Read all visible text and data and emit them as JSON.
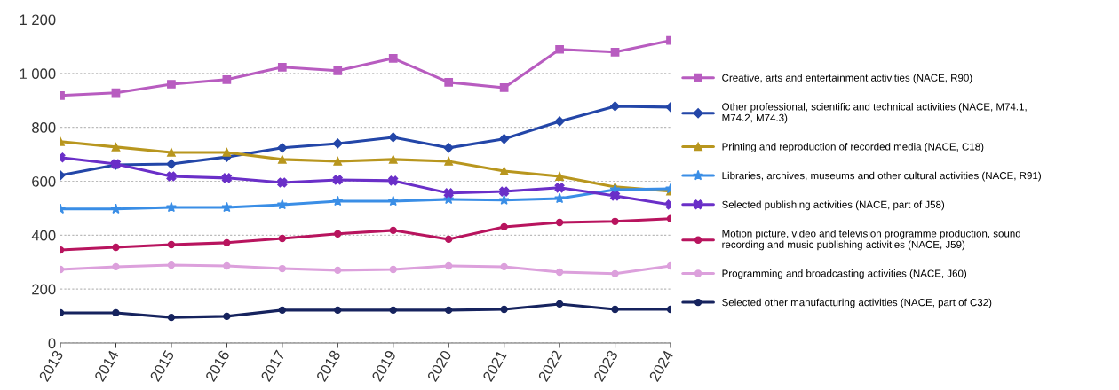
{
  "chart_data": {
    "type": "line",
    "categories": [
      "2013",
      "2014",
      "2015",
      "2016",
      "2017",
      "2018",
      "2019",
      "2020",
      "2021",
      "2022",
      "2023",
      "2024"
    ],
    "ylim": [
      0,
      1200
    ],
    "yticks": [
      0,
      200,
      400,
      600,
      800,
      {
        "value": 1000,
        "label": "1 000"
      },
      {
        "value": 1200,
        "label": "1 200"
      }
    ],
    "grid": "y",
    "legend": "right",
    "series": [
      {
        "name": "Creative, arts and entertainment activities (NACE, R90)",
        "color": "#b85cc0",
        "marker": "square",
        "values": [
          918,
          928,
          960,
          977,
          1023,
          1010,
          1056,
          967,
          947,
          1089,
          1079,
          1122
        ]
      },
      {
        "name": "Other professional, scientific and technical activities (NACE, M74.1,\nM74.2, M74.3)",
        "color": "#2346a8",
        "marker": "diamond",
        "values": [
          622,
          661,
          664,
          690,
          724,
          740,
          763,
          724,
          757,
          822,
          878,
          875
        ]
      },
      {
        "name": "Printing and reproduction of recorded media (NACE, C18)",
        "color": "#b8961e",
        "marker": "triangle",
        "values": [
          747,
          727,
          707,
          707,
          681,
          674,
          681,
          674,
          638,
          618,
          579,
          563
        ]
      },
      {
        "name": "Libraries, archives, museums and other cultural activities (NACE, R91)",
        "color": "#3a8ee6",
        "marker": "star",
        "values": [
          497,
          497,
          503,
          503,
          513,
          526,
          526,
          533,
          530,
          536,
          569,
          572
        ]
      },
      {
        "name": "Selected publishing activities (NACE, part of J58)",
        "color": "#6a2fc8",
        "marker": "cross",
        "values": [
          688,
          664,
          618,
          612,
          595,
          605,
          602,
          556,
          562,
          576,
          546,
          513
        ]
      },
      {
        "name": "Motion picture, video and television programme production, sound\nrecording and music publishing activities (NACE, J59)",
        "color": "#b8145e",
        "marker": "circle",
        "values": [
          345,
          355,
          365,
          372,
          388,
          405,
          418,
          385,
          431,
          447,
          451,
          461
        ]
      },
      {
        "name": "Programming and broadcasting activities (NACE, J60)",
        "color": "#dca0dc",
        "marker": "circle",
        "values": [
          273,
          283,
          289,
          286,
          276,
          270,
          273,
          286,
          283,
          263,
          257,
          286
        ]
      },
      {
        "name": "Selected other manufacturing activities (NACE, part of C32)",
        "color": "#16235e",
        "marker": "circle",
        "values": [
          112,
          112,
          95,
          99,
          122,
          122,
          122,
          122,
          125,
          145,
          125,
          125
        ]
      }
    ]
  }
}
